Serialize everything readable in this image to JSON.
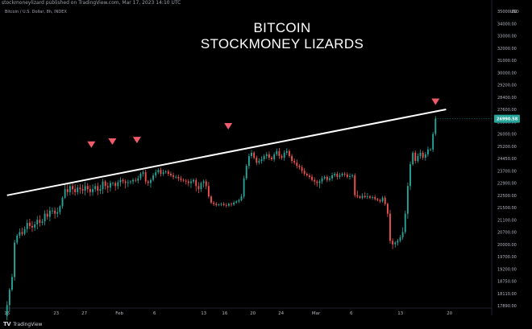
{
  "header": {
    "published": "stockmoneylizard published on TradingView.com, Mar 17, 2023 14:10 UTC"
  },
  "chart_data": {
    "type": "candlestick",
    "symbol_line": "Bitcoin / U.S. Dollar, 8h, INDEX",
    "overlay_title": [
      "BITCOIN",
      "STOCKMONEY LIZARDS"
    ],
    "currency": "USD",
    "ylim": [
      17750,
      35750
    ],
    "y_ticks": [
      17890,
      18110,
      18750,
      19200,
      19700,
      20000,
      20700,
      21100,
      21500,
      22500,
      22900,
      23700,
      24450,
      25200,
      26000,
      26800,
      27600,
      28400,
      29200,
      30000,
      31000,
      32000,
      33000,
      34000,
      35000
    ],
    "x_ticks": [
      "16",
      "23",
      "27",
      "Feb",
      "6",
      "13",
      "16",
      "20",
      "24",
      "Mar",
      "6",
      "13",
      "20"
    ],
    "x_tick_positions": [
      0,
      7,
      11,
      16,
      21,
      28,
      31,
      35,
      39,
      44,
      49,
      56,
      63
    ],
    "last_price": "26990.58",
    "last_price_value": 26990.58,
    "trendline": [
      {
        "x": 0,
        "y": 22500
      },
      {
        "x": 62.5,
        "y": 27600
      }
    ],
    "markers": [
      {
        "x": 12,
        "y": 25300
      },
      {
        "x": 15,
        "y": 25500
      },
      {
        "x": 18.5,
        "y": 25600
      },
      {
        "x": 31.5,
        "y": 26500
      },
      {
        "x": 61,
        "y": 28100
      }
    ],
    "bars_per_day": 3,
    "day_start": 0,
    "day_end": 61,
    "closes": [
      17900,
      18300,
      18900,
      20100,
      20500,
      20700,
      20600,
      20800,
      21000,
      20900,
      20850,
      20950,
      21100,
      21000,
      21050,
      21300,
      21200,
      21400,
      21400,
      21300,
      21350,
      21600,
      22300,
      22700,
      22600,
      22800,
      22700,
      22600,
      22750,
      22700,
      22650,
      22800,
      22700,
      22600,
      22700,
      22800,
      22650,
      22700,
      23000,
      22800,
      22750,
      22900,
      22900,
      22800,
      22950,
      23100,
      23000,
      22900,
      22950,
      23000,
      23100,
      23050,
      23200,
      23500,
      23600,
      23000,
      22900,
      23100,
      23400,
      23600,
      23750,
      23500,
      23600,
      23650,
      23500,
      23400,
      23300,
      23300,
      23200,
      23100,
      23050,
      23000,
      22900,
      23000,
      23100,
      22800,
      22700,
      22900,
      23000,
      22800,
      22400,
      21900,
      21800,
      21700,
      21750,
      21800,
      21700,
      21650,
      21800,
      21750,
      21900,
      22000,
      22100,
      22400,
      23200,
      24000,
      24600,
      24800,
      24500,
      24200,
      24300,
      24400,
      24600,
      24700,
      24500,
      24400,
      24700,
      24900,
      24600,
      24500,
      24800,
      24900,
      24600,
      24300,
      24200,
      24000,
      23900,
      23700,
      23500,
      23400,
      23300,
      23100,
      23000,
      22900,
      23000,
      23200,
      23300,
      23100,
      23200,
      23400,
      23500,
      23300,
      23400,
      23500,
      23450,
      23300,
      23350,
      23400,
      22500,
      22400,
      22300,
      22450,
      22350,
      22400,
      22300,
      22350,
      22200,
      22100,
      22000,
      22300,
      21800,
      21300,
      20200,
      20000,
      20100,
      20200,
      20400,
      20700,
      21300,
      22800,
      24100,
      24800,
      24300,
      24600,
      24800,
      24500,
      24700,
      25000,
      25000,
      26000,
      26990.58
    ]
  }
}
